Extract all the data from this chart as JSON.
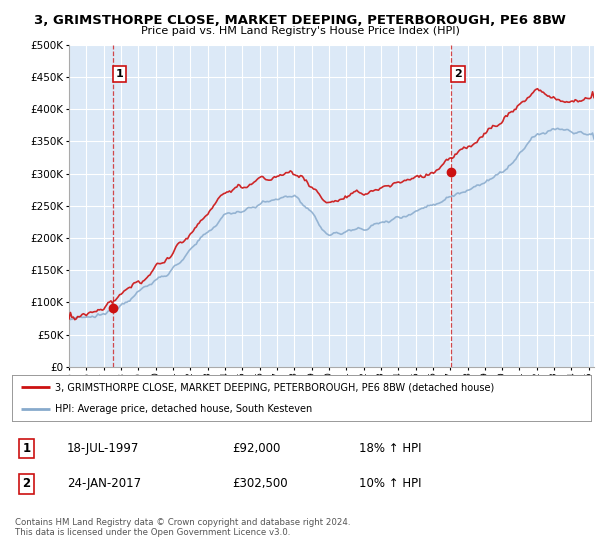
{
  "title1": "3, GRIMSTHORPE CLOSE, MARKET DEEPING, PETERBOROUGH, PE6 8BW",
  "title2": "Price paid vs. HM Land Registry's House Price Index (HPI)",
  "legend_red": "3, GRIMSTHORPE CLOSE, MARKET DEEPING, PETERBOROUGH, PE6 8BW (detached house)",
  "legend_blue": "HPI: Average price, detached house, South Kesteven",
  "transaction1_date": "18-JUL-1997",
  "transaction1_price": "£92,000",
  "transaction1_hpi": "18% ↑ HPI",
  "transaction2_date": "24-JAN-2017",
  "transaction2_price": "£302,500",
  "transaction2_hpi": "10% ↑ HPI",
  "footer": "Contains HM Land Registry data © Crown copyright and database right 2024.\nThis data is licensed under the Open Government Licence v3.0.",
  "background_color": "#dce9f7",
  "red_color": "#cc1111",
  "blue_color": "#88aacc",
  "ylim_min": 0,
  "ylim_max": 500000,
  "yticks": [
    0,
    50000,
    100000,
    150000,
    200000,
    250000,
    300000,
    350000,
    400000,
    450000,
    500000
  ],
  "transaction1_year": 1997.54,
  "transaction1_value": 92000,
  "transaction2_year": 2017.07,
  "transaction2_value": 302500
}
